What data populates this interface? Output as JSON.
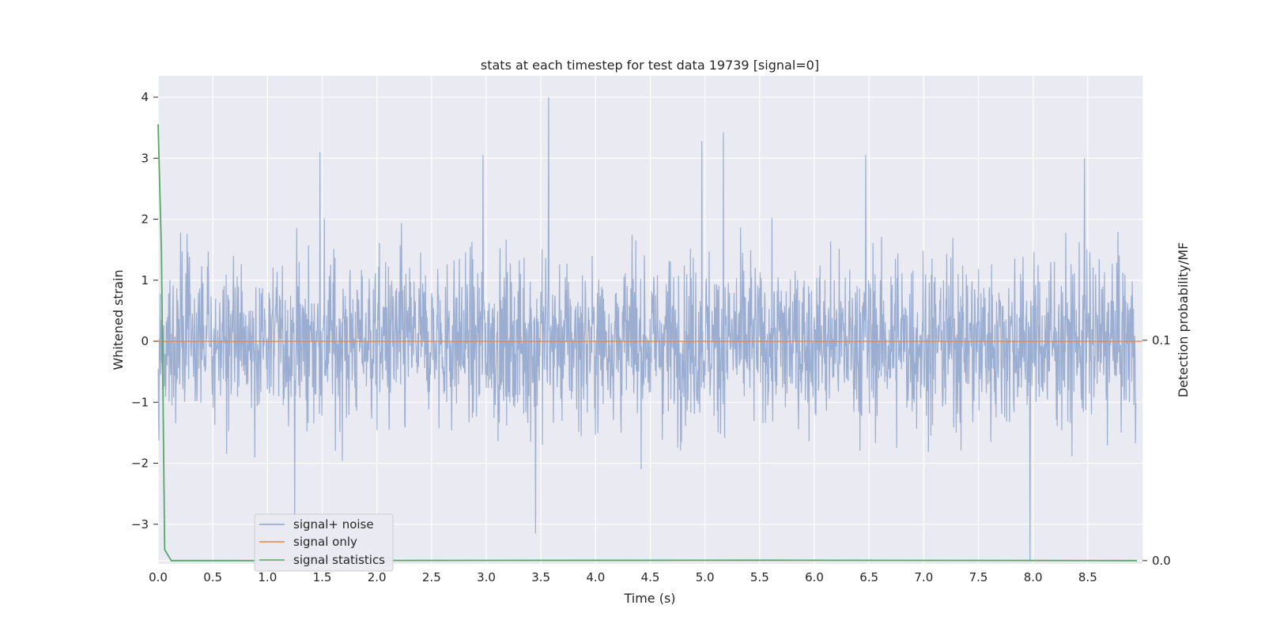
{
  "chart_data": {
    "type": "line",
    "title": "stats at each timestep for test data 19739 [signal=0]",
    "xlabel": "Time (s)",
    "ylabel": "Whitened strain",
    "y2label": "Detection probability/MF",
    "xlim": [
      0.0,
      9.0
    ],
    "ylim": [
      -3.65,
      4.35
    ],
    "y2lim": [
      -0.0015,
      0.22
    ],
    "x_ticks": [
      "0.0",
      "0.5",
      "1.0",
      "1.5",
      "2.0",
      "2.5",
      "3.0",
      "3.5",
      "4.0",
      "4.5",
      "5.0",
      "5.5",
      "6.0",
      "6.5",
      "7.0",
      "7.5",
      "8.0",
      "8.5"
    ],
    "y_ticks": [
      "4",
      "3",
      "2",
      "1",
      "0",
      "−1",
      "−2",
      "−3"
    ],
    "y2_ticks": [
      "0.1",
      "0.0"
    ],
    "grid": true,
    "legend_placement": "lower-left",
    "colors": {
      "background": "#eaeaf2",
      "grid": "#ffffff",
      "noise": "#4c72b0",
      "signal_only": "#dd8452",
      "statistics": "#55a868"
    },
    "series": [
      {
        "name": "signal+ noise",
        "axis": "left",
        "description_values": "dense whitened noise, approx range -3.6 to 4.0",
        "peaks": [
          [
            1.48,
            3.1
          ],
          [
            2.97,
            3.05
          ],
          [
            3.57,
            4.0
          ],
          [
            4.97,
            3.28
          ],
          [
            5.17,
            3.42
          ],
          [
            6.47,
            3.05
          ],
          [
            8.47,
            3.0
          ],
          [
            1.25,
            -3.1
          ],
          [
            3.45,
            -3.15
          ],
          [
            7.97,
            -3.6
          ]
        ]
      },
      {
        "name": "signal only",
        "axis": "left",
        "x": [
          0.0,
          9.0
        ],
        "y": [
          0.0,
          0.0
        ]
      },
      {
        "name": "signal statistics",
        "axis": "right",
        "x": [
          0.0,
          0.03,
          0.06,
          0.12,
          0.5,
          5.4,
          8.95
        ],
        "y": [
          0.198,
          0.14,
          0.005,
          0.0,
          0.0,
          0.0002,
          0.0
        ]
      }
    ],
    "legend": [
      "signal+ noise",
      "signal only",
      "signal statistics"
    ]
  }
}
